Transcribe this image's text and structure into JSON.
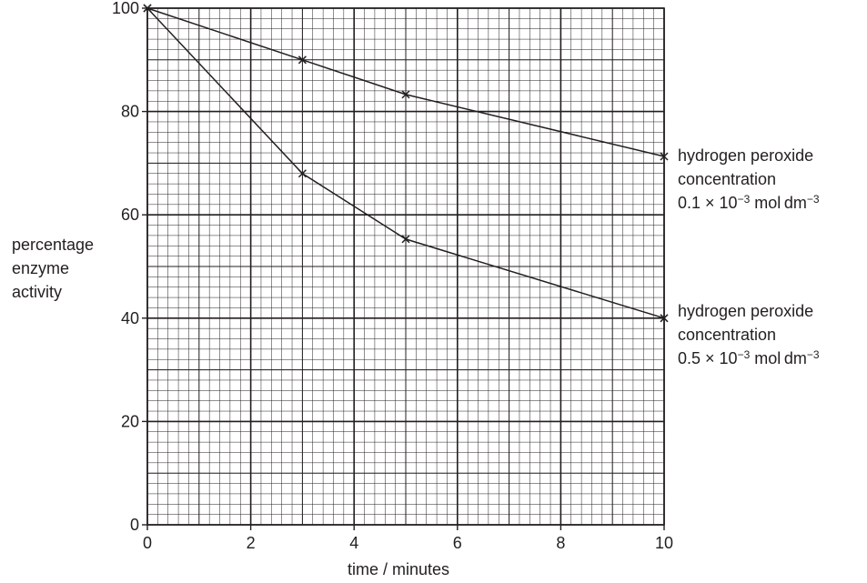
{
  "chart_data": {
    "type": "line",
    "x_axis_label": "time / minutes",
    "y_axis_label_lines": [
      "percentage",
      "enzyme",
      "activity"
    ],
    "xlim": [
      0,
      10
    ],
    "ylim": [
      0,
      100
    ],
    "x_ticks": [
      0,
      2,
      4,
      6,
      8,
      10
    ],
    "y_ticks": [
      0,
      20,
      40,
      60,
      80,
      100
    ],
    "x_minor_step": 0.2,
    "y_minor_step": 2,
    "grid": true,
    "marker": "x",
    "series": [
      {
        "label_lines": [
          "hydrogen peroxide",
          "concentration"
        ],
        "label_value": "0.1",
        "label_exp": "−3",
        "label_unit_mid": "mol dm",
        "label_unit_exp": "−3",
        "x": [
          0,
          3,
          5,
          10
        ],
        "y": [
          100,
          90,
          83.3,
          71.3
        ]
      },
      {
        "label_lines": [
          "hydrogen peroxide",
          "concentration"
        ],
        "label_value": "0.5",
        "label_exp": "−3",
        "label_unit_mid": "mol dm",
        "label_unit_exp": "−3",
        "x": [
          0,
          3,
          5,
          10
        ],
        "y": [
          100,
          68,
          55.3,
          40
        ]
      }
    ],
    "colors": {
      "line": "#231f20",
      "minor_grid": "#231f20",
      "major_grid": "#231f20"
    }
  }
}
